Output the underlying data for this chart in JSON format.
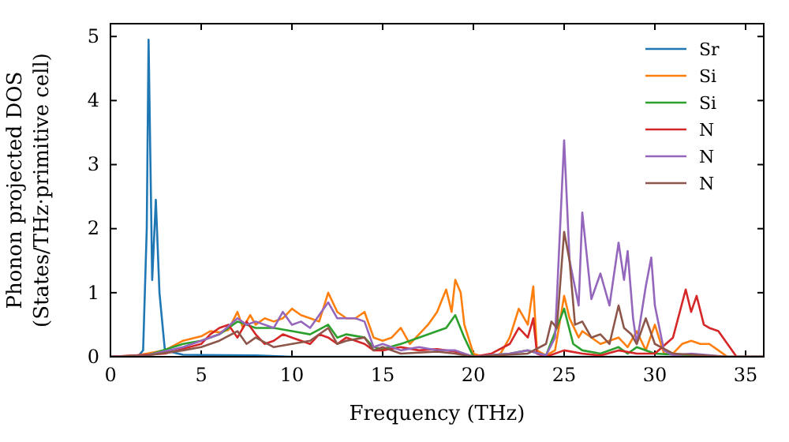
{
  "chart_data": {
    "type": "line",
    "xlabel": "Frequency (THz)",
    "ylabel": "Phonon projected DOS\n(States/THz·primitive cell)",
    "xlim": [
      0,
      36
    ],
    "ylim": [
      0,
      5.2
    ],
    "xticks": [
      0,
      5,
      10,
      15,
      20,
      25,
      30,
      35
    ],
    "yticks": [
      0,
      1,
      2,
      3,
      4,
      5
    ],
    "legend": "top right",
    "series": [
      {
        "name": "Sr",
        "color": "#1f77b4",
        "x": [
          0,
          1.5,
          1.8,
          2.0,
          2.1,
          2.3,
          2.5,
          2.7,
          3.0,
          4,
          8,
          10,
          20,
          36
        ],
        "values": [
          0,
          0,
          0.1,
          2,
          4.95,
          1.2,
          2.45,
          1.0,
          0.1,
          0.03,
          0.02,
          0,
          0,
          0
        ]
      },
      {
        "name": "Si",
        "color": "#ff7f0e",
        "x": [
          0,
          1.5,
          2,
          3,
          4,
          5,
          5.5,
          6,
          6.5,
          7,
          7.3,
          7.7,
          8,
          8.5,
          9,
          9.5,
          10,
          10.5,
          11,
          11.5,
          12,
          12.5,
          13,
          13.5,
          14,
          14.5,
          15,
          15.5,
          16,
          16.5,
          17,
          17.5,
          18,
          18.5,
          18.8,
          19,
          19.3,
          19.5,
          20,
          20.5,
          21,
          21.5,
          22,
          22.5,
          23,
          23.3,
          23.5,
          24,
          24.5,
          25,
          25.3,
          25.8,
          26,
          27,
          28,
          28.5,
          29,
          29.5,
          30,
          30.5,
          31,
          31.5,
          32,
          32.5,
          33,
          33.5,
          34,
          36
        ],
        "values": [
          0,
          0.02,
          0.05,
          0.1,
          0.25,
          0.32,
          0.4,
          0.38,
          0.42,
          0.7,
          0.45,
          0.65,
          0.5,
          0.6,
          0.55,
          0.6,
          0.75,
          0.65,
          0.6,
          0.55,
          1.0,
          0.7,
          0.6,
          0.6,
          0.7,
          0.3,
          0.25,
          0.3,
          0.45,
          0.2,
          0.35,
          0.5,
          0.7,
          1.05,
          0.7,
          1.2,
          1.0,
          0.5,
          0.05,
          0,
          0,
          0.05,
          0.3,
          0.75,
          0.5,
          1.1,
          0.1,
          0.02,
          0.1,
          0.95,
          0.6,
          0.3,
          0.4,
          0.2,
          0.3,
          0.15,
          0.4,
          0.1,
          0.5,
          0.05,
          0.05,
          0.2,
          0.25,
          0.2,
          0.2,
          0.1,
          0,
          0
        ]
      },
      {
        "name": "Si",
        "color": "#2ca02c",
        "x": [
          0,
          2,
          4,
          5,
          6,
          7,
          8,
          9,
          10,
          11,
          12,
          12.5,
          13,
          14,
          14.5,
          15,
          16,
          17,
          18,
          18.5,
          19,
          19.5,
          20,
          22,
          23,
          24,
          25,
          25.5,
          26,
          27,
          28,
          28.5,
          29,
          30,
          32,
          34,
          36
        ],
        "values": [
          0,
          0.02,
          0.2,
          0.25,
          0.35,
          0.55,
          0.45,
          0.45,
          0.4,
          0.35,
          0.5,
          0.3,
          0.35,
          0.3,
          0.15,
          0.12,
          0.2,
          0.3,
          0.4,
          0.45,
          0.65,
          0.3,
          0,
          0.05,
          0.1,
          0.02,
          0.75,
          0.2,
          0.1,
          0.05,
          0.15,
          0.05,
          0.15,
          0.05,
          0.02,
          0,
          0
        ]
      },
      {
        "name": "N",
        "color": "#d62728",
        "x": [
          0,
          3,
          5,
          5.5,
          6,
          6.5,
          7,
          7.5,
          8,
          8.5,
          9,
          9.5,
          10,
          10.5,
          11,
          11.5,
          12,
          12.5,
          13,
          14,
          14.5,
          15,
          16,
          17,
          18,
          19,
          20,
          21,
          22,
          22.5,
          23,
          23.3,
          23.5,
          24,
          25,
          26,
          27,
          28,
          29,
          30,
          31,
          31.7,
          32,
          32.3,
          32.7,
          33,
          33.5,
          34,
          34.5,
          36
        ],
        "values": [
          0,
          0.05,
          0.2,
          0.35,
          0.45,
          0.5,
          0.3,
          0.55,
          0.35,
          0.2,
          0.25,
          0.35,
          0.3,
          0.25,
          0.2,
          0.35,
          0.3,
          0.2,
          0.3,
          0.2,
          0.1,
          0.1,
          0.15,
          0.1,
          0.12,
          0.08,
          0,
          0.05,
          0.2,
          0.45,
          0.3,
          0.6,
          0.05,
          0,
          0.1,
          0.05,
          0.02,
          0.1,
          0.05,
          0.05,
          0.3,
          1.05,
          0.7,
          0.95,
          0.5,
          0.45,
          0.4,
          0.2,
          0,
          0
        ]
      },
      {
        "name": "N",
        "color": "#9467bd",
        "x": [
          0,
          2,
          4,
          5,
          6,
          7,
          7.5,
          8,
          9,
          9.5,
          10,
          10.5,
          11,
          12,
          12.5,
          13,
          13.5,
          14,
          14.5,
          15,
          16,
          17,
          18,
          19,
          20,
          22,
          23,
          24,
          24.5,
          25,
          25.3,
          25.8,
          26,
          26.5,
          27,
          27.5,
          28,
          28.3,
          28.5,
          28.8,
          29,
          29.5,
          29.8,
          30,
          30.5,
          31,
          32,
          34,
          36
        ],
        "values": [
          0,
          0.02,
          0.15,
          0.25,
          0.35,
          0.6,
          0.5,
          0.55,
          0.45,
          0.7,
          0.5,
          0.55,
          0.45,
          0.85,
          0.6,
          0.6,
          0.6,
          0.55,
          0.15,
          0.2,
          0.1,
          0.15,
          0.1,
          0.1,
          0,
          0.05,
          0.1,
          0.02,
          0.3,
          3.38,
          1.5,
          0.8,
          2.25,
          0.9,
          1.3,
          0.8,
          1.78,
          1.2,
          1.65,
          0.6,
          0.2,
          1.1,
          1.55,
          0.8,
          0.1,
          0.02,
          0.05,
          0,
          0
        ]
      },
      {
        "name": "N",
        "color": "#8c564b",
        "x": [
          0,
          2,
          4,
          5,
          6,
          7,
          7.5,
          8,
          9,
          10,
          11,
          12,
          12.5,
          13,
          14,
          14.5,
          15,
          16,
          18,
          19,
          20,
          23,
          24,
          24.3,
          24.6,
          25,
          25.3,
          25.6,
          26,
          26.5,
          27,
          27.5,
          28,
          28.3,
          28.7,
          29,
          29.5,
          30,
          31,
          34,
          36
        ],
        "values": [
          0,
          0.02,
          0.1,
          0.15,
          0.25,
          0.4,
          0.2,
          0.3,
          0.15,
          0.2,
          0.25,
          0.45,
          0.2,
          0.25,
          0.3,
          0.1,
          0.15,
          0.05,
          0.08,
          0.05,
          0,
          0.05,
          0.2,
          0.55,
          0.45,
          1.95,
          1.5,
          0.5,
          0.55,
          0.3,
          0.35,
          0.2,
          0.8,
          0.45,
          0.35,
          0.2,
          0.6,
          0.2,
          0.05,
          0,
          0
        ]
      }
    ]
  }
}
